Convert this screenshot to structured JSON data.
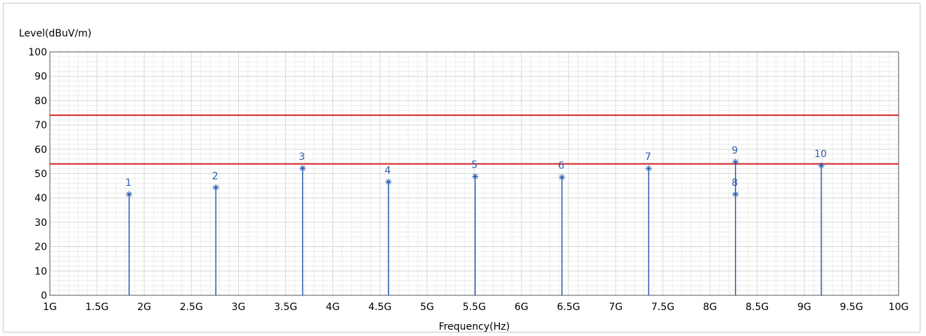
{
  "chart_data": {
    "type": "line",
    "ylabel": "Level(dBuV/m)",
    "xlabel": "Frequency(Hz)",
    "xlim": [
      1,
      10
    ],
    "ylim": [
      0,
      100
    ],
    "x_unit": "GHz",
    "x_ticks": [
      {
        "value": 1,
        "label": "1G"
      },
      {
        "value": 1.5,
        "label": "1.5G"
      },
      {
        "value": 2,
        "label": "2G"
      },
      {
        "value": 2.5,
        "label": "2.5G"
      },
      {
        "value": 3,
        "label": "3G"
      },
      {
        "value": 3.5,
        "label": "3.5G"
      },
      {
        "value": 4,
        "label": "4G"
      },
      {
        "value": 4.5,
        "label": "4.5G"
      },
      {
        "value": 5,
        "label": "5G"
      },
      {
        "value": 5.5,
        "label": "5.5G"
      },
      {
        "value": 6,
        "label": "6G"
      },
      {
        "value": 6.5,
        "label": "6.5G"
      },
      {
        "value": 7,
        "label": "7G"
      },
      {
        "value": 7.5,
        "label": "7.5G"
      },
      {
        "value": 8,
        "label": "8G"
      },
      {
        "value": 8.5,
        "label": "8.5G"
      },
      {
        "value": 9,
        "label": "9G"
      },
      {
        "value": 9.5,
        "label": "9.5G"
      },
      {
        "value": 10,
        "label": "10G"
      }
    ],
    "y_ticks": [
      {
        "value": 0,
        "label": "0"
      },
      {
        "value": 10,
        "label": "10"
      },
      {
        "value": 20,
        "label": "20"
      },
      {
        "value": 30,
        "label": "30"
      },
      {
        "value": 40,
        "label": "40"
      },
      {
        "value": 50,
        "label": "50"
      },
      {
        "value": 60,
        "label": "60"
      },
      {
        "value": 70,
        "label": "70"
      },
      {
        "value": 80,
        "label": "80"
      },
      {
        "value": 90,
        "label": "90"
      },
      {
        "value": 100,
        "label": "100"
      }
    ],
    "grid": true,
    "limit_lines": [
      {
        "level": 74,
        "color": "#d42020"
      },
      {
        "level": 54,
        "color": "#d42020"
      }
    ],
    "markers": [
      {
        "label": "1",
        "freq": 1.84,
        "level": 41.5
      },
      {
        "label": "2",
        "freq": 2.76,
        "level": 44.3
      },
      {
        "label": "3",
        "freq": 3.68,
        "level": 52.2
      },
      {
        "label": "4",
        "freq": 4.59,
        "level": 46.6
      },
      {
        "label": "5",
        "freq": 5.51,
        "level": 48.8
      },
      {
        "label": "6",
        "freq": 6.43,
        "level": 48.5
      },
      {
        "label": "7",
        "freq": 7.35,
        "level": 52.1
      },
      {
        "label": "8",
        "freq": 8.27,
        "level": 41.5
      },
      {
        "label": "9",
        "freq": 8.27,
        "level": 54.8
      },
      {
        "label": "10",
        "freq": 9.18,
        "level": 53.3
      }
    ],
    "colors": {
      "marker": "#2a5db0",
      "grid_minor": "#ececec",
      "grid_major": "#d6d6d6",
      "axis": "#555555"
    }
  }
}
